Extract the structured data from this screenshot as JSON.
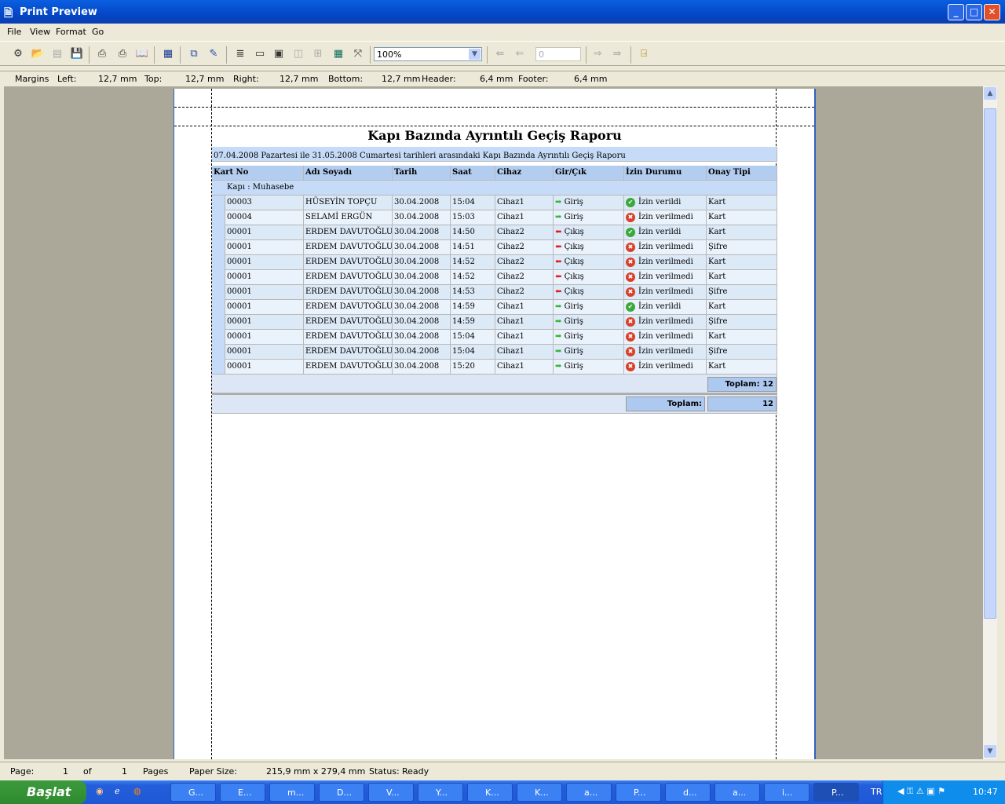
{
  "window": {
    "title": "Print Preview"
  },
  "menu": [
    "File",
    "View",
    "Format",
    "Go"
  ],
  "toolbar": {
    "zoom": "100%",
    "page_input": "0"
  },
  "margins": {
    "label": "Margins",
    "left_label": "Left:",
    "left": "12,7 mm",
    "top_label": "Top:",
    "top": "12,7 mm",
    "right_label": "Right:",
    "right": "12,7 mm",
    "bottom_label": "Bottom:",
    "bottom": "12,7 mm",
    "header_label": "Header:",
    "header": "6,4 mm",
    "footer_label": "Footer:",
    "footer": "6,4 mm"
  },
  "report": {
    "title": "Kapı Bazında Ayrıntılı Geçiş Raporu",
    "subtitle": "07.04.2008 Pazartesi ile 31.05.2008 Cumartesi tarihleri arasındaki Kapı Bazında Ayrıntılı Geçiş Raporu",
    "columns": [
      "Kart No",
      "Adı Soyadı",
      "Tarih",
      "Saat",
      "Cihaz",
      "Gir/Çık",
      "İzin Durumu",
      "Onay Tipi"
    ],
    "group": "Kapı : Muhasebe",
    "rows": [
      [
        "00003",
        "HÜSEYİN TOPÇU",
        "30.04.2008",
        "15:04",
        "Cihaz1",
        "Giriş",
        "İzin verildi",
        "Kart"
      ],
      [
        "00004",
        "SELAMİ ERGÜN",
        "30.04.2008",
        "15:03",
        "Cihaz1",
        "Giriş",
        "İzin verilmedi",
        "Kart"
      ],
      [
        "00001",
        "ERDEM DAVUTOĞLU",
        "30.04.2008",
        "14:50",
        "Cihaz2",
        "Çıkış",
        "İzin verildi",
        "Kart"
      ],
      [
        "00001",
        "ERDEM DAVUTOĞLU",
        "30.04.2008",
        "14:51",
        "Cihaz2",
        "Çıkış",
        "İzin verilmedi",
        "Şifre"
      ],
      [
        "00001",
        "ERDEM DAVUTOĞLU",
        "30.04.2008",
        "14:52",
        "Cihaz2",
        "Çıkış",
        "İzin verilmedi",
        "Kart"
      ],
      [
        "00001",
        "ERDEM DAVUTOĞLU",
        "30.04.2008",
        "14:52",
        "Cihaz2",
        "Çıkış",
        "İzin verilmedi",
        "Kart"
      ],
      [
        "00001",
        "ERDEM DAVUTOĞLU",
        "30.04.2008",
        "14:53",
        "Cihaz2",
        "Çıkış",
        "İzin verilmedi",
        "Şifre"
      ],
      [
        "00001",
        "ERDEM DAVUTOĞLU",
        "30.04.2008",
        "14:59",
        "Cihaz1",
        "Giriş",
        "İzin verildi",
        "Kart"
      ],
      [
        "00001",
        "ERDEM DAVUTOĞLU",
        "30.04.2008",
        "14:59",
        "Cihaz1",
        "Giriş",
        "İzin verilmedi",
        "Şifre"
      ],
      [
        "00001",
        "ERDEM DAVUTOĞLU",
        "30.04.2008",
        "15:04",
        "Cihaz1",
        "Giriş",
        "İzin verilmedi",
        "Kart"
      ],
      [
        "00001",
        "ERDEM DAVUTOĞLU",
        "30.04.2008",
        "15:04",
        "Cihaz1",
        "Giriş",
        "İzin verilmedi",
        "Şifre"
      ],
      [
        "00001",
        "ERDEM DAVUTOĞLU",
        "30.04.2008",
        "15:20",
        "Cihaz1",
        "Giriş",
        "İzin verilmedi",
        "Kart"
      ]
    ],
    "group_total": "Toplam: 12",
    "grand_total_label": "Toplam:",
    "grand_total": "12"
  },
  "status": {
    "page_label": "Page:",
    "page": "1",
    "of_label": "of",
    "pages": "1",
    "pages_label": "Pages",
    "paper_label": "Paper Size:",
    "paper": "215,9 mm x 279,4 mm",
    "status_label": "Status:",
    "status": "Ready"
  },
  "taskbar": {
    "start": "Başlat",
    "tasks": [
      "G...",
      "E...",
      "m...",
      "D...",
      "V...",
      "Y...",
      "K...",
      "K...",
      "a...",
      "P...",
      "d...",
      "a...",
      "i...",
      "P..."
    ],
    "lang": "TR",
    "clock": "10:47"
  },
  "colors": {
    "granted": "#3aa83a",
    "denied": "#d9402a",
    "entry_arrow": "#3cb43c",
    "exit_arrow": "#e02020"
  }
}
